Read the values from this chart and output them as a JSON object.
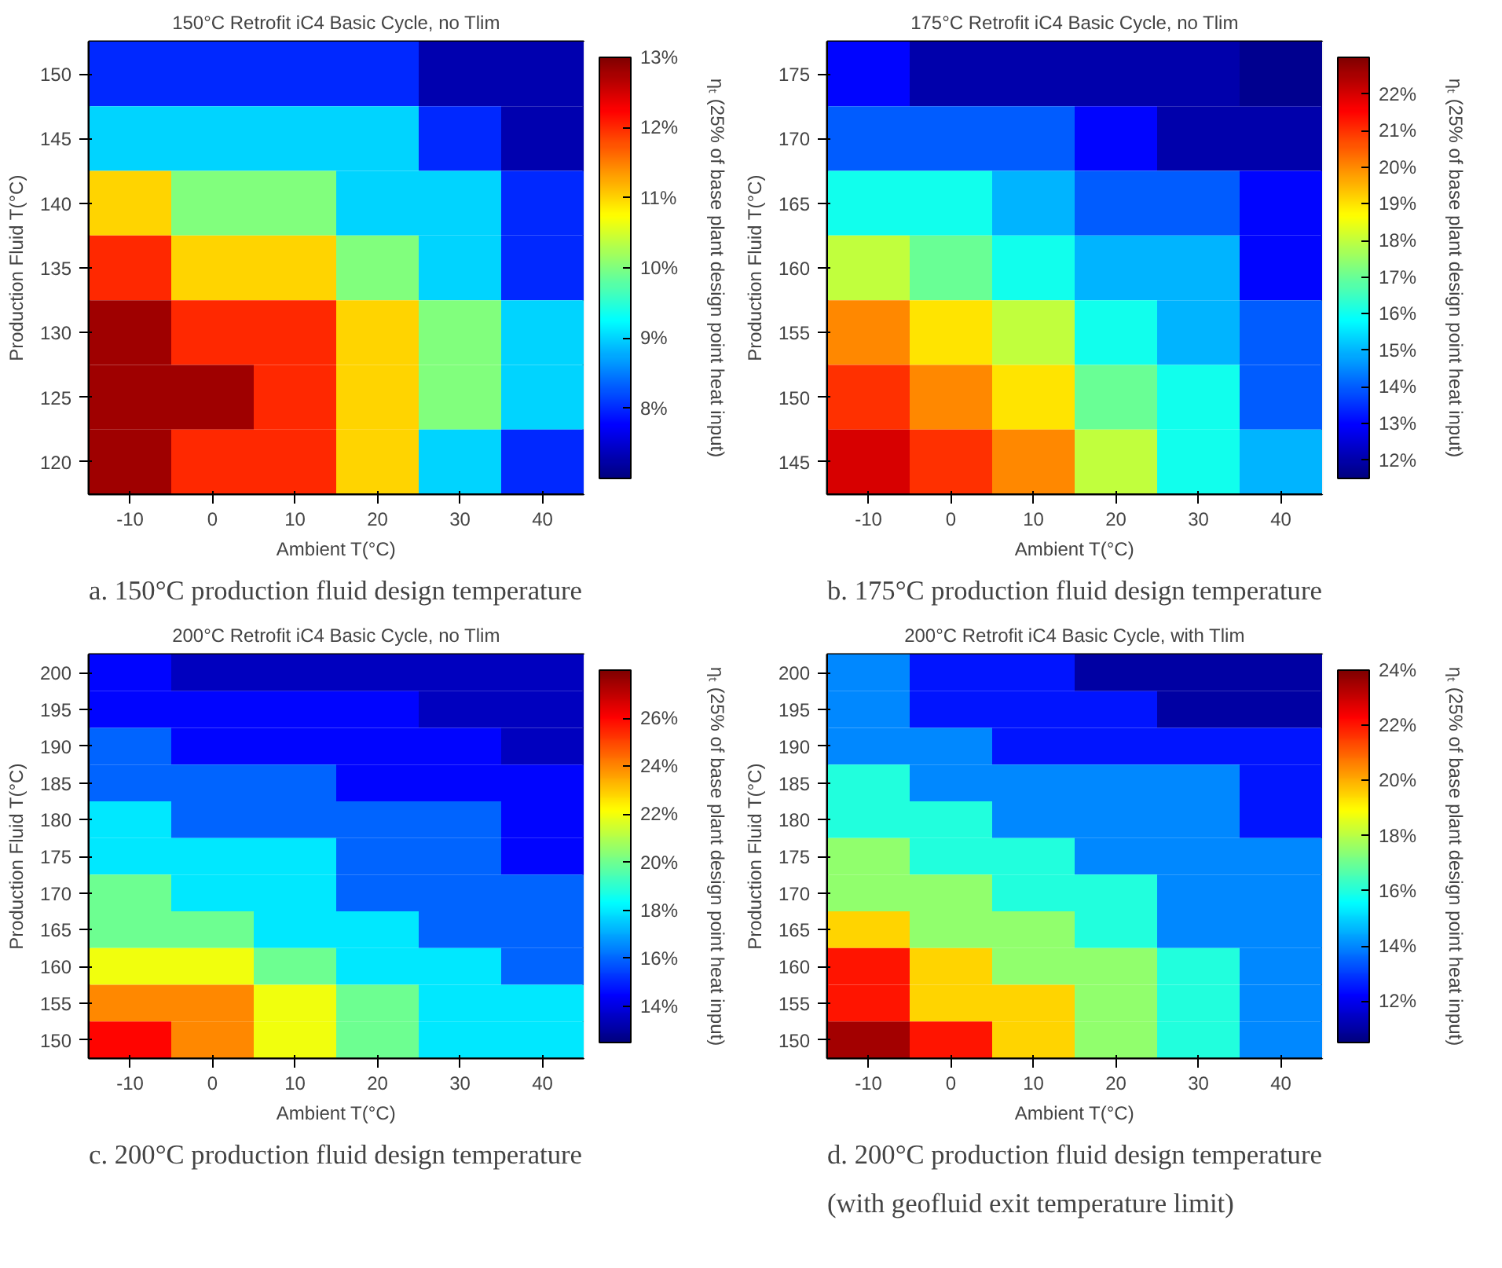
{
  "chart_data": [
    {
      "type": "heatmap",
      "title": "150°C Retrofit iC4 Basic Cycle, no Tlim",
      "xlabel": "Ambient T(°C)",
      "ylabel": "Production Fluid T(°C)",
      "clabel": "ηₜ (25% of base plant design point heat input)",
      "categories": [
        "-10",
        "0",
        "10",
        "20",
        "30",
        "40"
      ],
      "y_categories": [
        "150",
        "145",
        "140",
        "135",
        "130",
        "125",
        "120"
      ],
      "cells": [
        [
          8,
          8,
          8,
          8,
          7.3,
          7.3
        ],
        [
          9,
          9,
          9,
          9,
          8,
          7.3
        ],
        [
          11,
          10,
          10,
          9,
          9,
          8
        ],
        [
          12,
          11,
          11,
          10,
          9,
          8
        ],
        [
          12.8,
          12,
          12,
          11,
          10,
          9
        ],
        [
          12.8,
          12.8,
          12,
          11,
          10,
          9
        ],
        [
          12.8,
          12,
          12,
          11,
          9,
          8
        ]
      ],
      "clim": [
        7,
        13
      ],
      "cticks": [
        {
          "value": 8,
          "label": "8%"
        },
        {
          "value": 9,
          "label": "9%"
        },
        {
          "value": 10,
          "label": "10%"
        },
        {
          "value": 11,
          "label": "11%"
        },
        {
          "value": 12,
          "label": "12%"
        },
        {
          "value": 13,
          "label": "13%"
        }
      ],
      "annotations": [
        "a. 150°C production fluid design temperature"
      ]
    },
    {
      "type": "heatmap",
      "title": "175°C Retrofit iC4 Basic Cycle, no Tlim",
      "xlabel": "Ambient T(°C)",
      "ylabel": "Production Fluid T(°C)",
      "clabel": "ηₜ (25% of base plant design point heat input)",
      "categories": [
        "-10",
        "0",
        "10",
        "20",
        "30",
        "40"
      ],
      "y_categories": [
        "175",
        "170",
        "165",
        "160",
        "155",
        "150",
        "145"
      ],
      "cells": [
        [
          13,
          12,
          12,
          12,
          12,
          11.7
        ],
        [
          14,
          14,
          14,
          13,
          12,
          12
        ],
        [
          16,
          16,
          15,
          14,
          14,
          13
        ],
        [
          18,
          17,
          16,
          15,
          15,
          13
        ],
        [
          20,
          19,
          18,
          16,
          15,
          14
        ],
        [
          21,
          20,
          19,
          17,
          16,
          14
        ],
        [
          22,
          21,
          20,
          18,
          16,
          15
        ]
      ],
      "clim": [
        11.5,
        23
      ],
      "cticks": [
        {
          "value": 12,
          "label": "12%"
        },
        {
          "value": 13,
          "label": "13%"
        },
        {
          "value": 14,
          "label": "14%"
        },
        {
          "value": 15,
          "label": "15%"
        },
        {
          "value": 16,
          "label": "16%"
        },
        {
          "value": 17,
          "label": "17%"
        },
        {
          "value": 18,
          "label": "18%"
        },
        {
          "value": 19,
          "label": "19%"
        },
        {
          "value": 20,
          "label": "20%"
        },
        {
          "value": 21,
          "label": "21%"
        },
        {
          "value": 22,
          "label": "22%"
        }
      ],
      "annotations": [
        "b. 175°C production fluid design temperature"
      ]
    },
    {
      "type": "heatmap",
      "title": "200°C Retrofit iC4 Basic Cycle, no Tlim",
      "xlabel": "Ambient T(°C)",
      "ylabel": "Production Fluid T(°C)",
      "clabel": "ηₜ (25% of base plant design point heat input)",
      "categories": [
        "-10",
        "0",
        "10",
        "20",
        "30",
        "40"
      ],
      "y_categories": [
        "200",
        "195",
        "190",
        "185",
        "180",
        "175",
        "170",
        "165",
        "160",
        "155",
        "150"
      ],
      "cells": [
        [
          14.5,
          13.5,
          13.5,
          13.5,
          13.5,
          13.5
        ],
        [
          14.5,
          14.5,
          14.5,
          14.5,
          13.5,
          13.5
        ],
        [
          16,
          14.5,
          14.5,
          14.5,
          14.5,
          13.5
        ],
        [
          16,
          16,
          16,
          14.5,
          14.5,
          14.5
        ],
        [
          18,
          16,
          16,
          16,
          16,
          14.5
        ],
        [
          18,
          18,
          18,
          16,
          16,
          14.5
        ],
        [
          20,
          18,
          18,
          16,
          16,
          16
        ],
        [
          20,
          20,
          18,
          18,
          16,
          16
        ],
        [
          22,
          22,
          20,
          18,
          18,
          16
        ],
        [
          24,
          24,
          22,
          20,
          18,
          18
        ],
        [
          26,
          24,
          22,
          20,
          18,
          18
        ]
      ],
      "clim": [
        12.5,
        28
      ],
      "cticks": [
        {
          "value": 14,
          "label": "14%"
        },
        {
          "value": 16,
          "label": "16%"
        },
        {
          "value": 18,
          "label": "18%"
        },
        {
          "value": 20,
          "label": "20%"
        },
        {
          "value": 22,
          "label": "22%"
        },
        {
          "value": 24,
          "label": "24%"
        },
        {
          "value": 26,
          "label": "26%"
        }
      ],
      "annotations": [
        "c. 200°C production fluid design temperature"
      ]
    },
    {
      "type": "heatmap",
      "title": "200°C Retrofit iC4 Basic Cycle, with Tlim",
      "xlabel": "Ambient T(°C)",
      "ylabel": "Production Fluid T(°C)",
      "clabel": "ηₜ (25% of base plant design point heat input)",
      "categories": [
        "-10",
        "0",
        "10",
        "20",
        "30",
        "40"
      ],
      "y_categories": [
        "200",
        "195",
        "190",
        "185",
        "180",
        "175",
        "170",
        "165",
        "160",
        "155",
        "150"
      ],
      "cells": [
        [
          14,
          12.5,
          12.5,
          11,
          11,
          11
        ],
        [
          14,
          12.5,
          12.5,
          12.5,
          11,
          11
        ],
        [
          14,
          14,
          12.5,
          12.5,
          12.5,
          12.5
        ],
        [
          16,
          14,
          14,
          14,
          14,
          12.5
        ],
        [
          16,
          16,
          14,
          14,
          14,
          12.5
        ],
        [
          17.5,
          16,
          16,
          14,
          14,
          14
        ],
        [
          17.5,
          17.5,
          16,
          16,
          14,
          14
        ],
        [
          19.5,
          17.5,
          17.5,
          16,
          14,
          14
        ],
        [
          22,
          19.5,
          17.5,
          17.5,
          16,
          14
        ],
        [
          22,
          19.5,
          19.5,
          17.5,
          16,
          14
        ],
        [
          23.5,
          22,
          19.5,
          17.5,
          16,
          14
        ]
      ],
      "clim": [
        10.5,
        24
      ],
      "cticks": [
        {
          "value": 12,
          "label": "12%"
        },
        {
          "value": 14,
          "label": "14%"
        },
        {
          "value": 16,
          "label": "16%"
        },
        {
          "value": 18,
          "label": "18%"
        },
        {
          "value": 20,
          "label": "20%"
        },
        {
          "value": 22,
          "label": "22%"
        },
        {
          "value": 24,
          "label": "24%"
        }
      ],
      "annotations": [
        "d. 200°C production fluid design temperature",
        "(with geofluid exit temperature limit)"
      ]
    }
  ]
}
